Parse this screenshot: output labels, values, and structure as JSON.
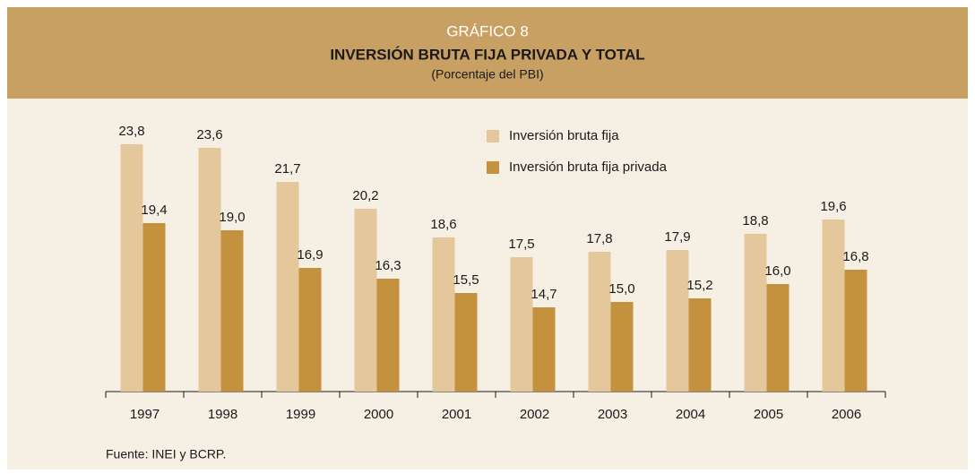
{
  "chart_data": {
    "type": "bar",
    "header": "GRÁFICO 8",
    "title": "INVERSIÓN BRUTA FIJA PRIVADA Y TOTAL",
    "subtitle": "(Porcentaje del PBI)",
    "source": "Fuente: INEI y BCRP.",
    "categories": [
      "1997",
      "1998",
      "1999",
      "2000",
      "2001",
      "2002",
      "2003",
      "2004",
      "2005",
      "2006"
    ],
    "series": [
      {
        "name": "Inversión bruta fija",
        "color": "#e5c79c",
        "values": [
          23.8,
          23.6,
          21.7,
          20.2,
          18.6,
          17.5,
          17.8,
          17.9,
          18.8,
          19.6
        ],
        "value_labels": [
          "23,8",
          "23,6",
          "21,7",
          "20,2",
          "18,6",
          "17,5",
          "17,8",
          "17,9",
          "18,8",
          "19,6"
        ]
      },
      {
        "name": "Inversión bruta fija privada",
        "color": "#c4913f",
        "values": [
          19.4,
          19.0,
          16.9,
          16.3,
          15.5,
          14.7,
          15.0,
          15.2,
          16.0,
          16.8
        ],
        "value_labels": [
          "19,4",
          "19,0",
          "16,9",
          "16,3",
          "15,5",
          "14,7",
          "15,0",
          "15,2",
          "16,0",
          "16,8"
        ]
      }
    ],
    "ylim": [
      10,
      25
    ],
    "legend": "top-right"
  }
}
